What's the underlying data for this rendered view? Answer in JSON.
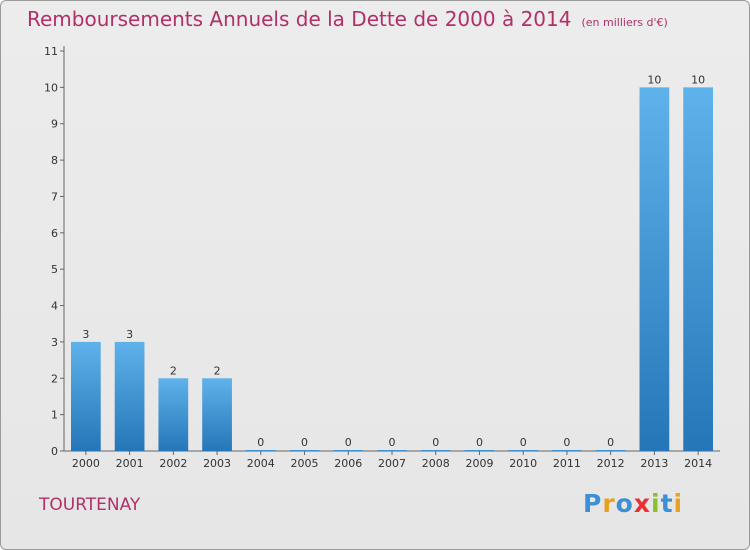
{
  "chart_data": {
    "type": "bar",
    "title": "Remboursements Annuels de la Dette de 2000 à 2014",
    "subtitle": "(en milliers d'€)",
    "categories": [
      "2000",
      "2001",
      "2002",
      "2003",
      "2004",
      "2005",
      "2006",
      "2007",
      "2008",
      "2009",
      "2010",
      "2011",
      "2012",
      "2013",
      "2014"
    ],
    "values": [
      3,
      3,
      2,
      2,
      0,
      0,
      0,
      0,
      0,
      0,
      0,
      0,
      0,
      10,
      10
    ],
    "ylim": [
      0,
      11
    ],
    "yticks": [
      0,
      1,
      2,
      3,
      4,
      5,
      6,
      7,
      8,
      9,
      10,
      11
    ],
    "grid": false,
    "bar_color": "#4499d8"
  },
  "footer": {
    "city": "TOURTENAY",
    "brand_letters": [
      {
        "ch": "P",
        "color": "#3d8fd6"
      },
      {
        "ch": "r",
        "color": "#e8a020"
      },
      {
        "ch": "o",
        "color": "#3d8fd6"
      },
      {
        "ch": "x",
        "color": "#e83030"
      },
      {
        "ch": "i",
        "color": "#88c030"
      },
      {
        "ch": "t",
        "color": "#3d8fd6"
      },
      {
        "ch": "i",
        "color": "#e8a020"
      }
    ]
  }
}
